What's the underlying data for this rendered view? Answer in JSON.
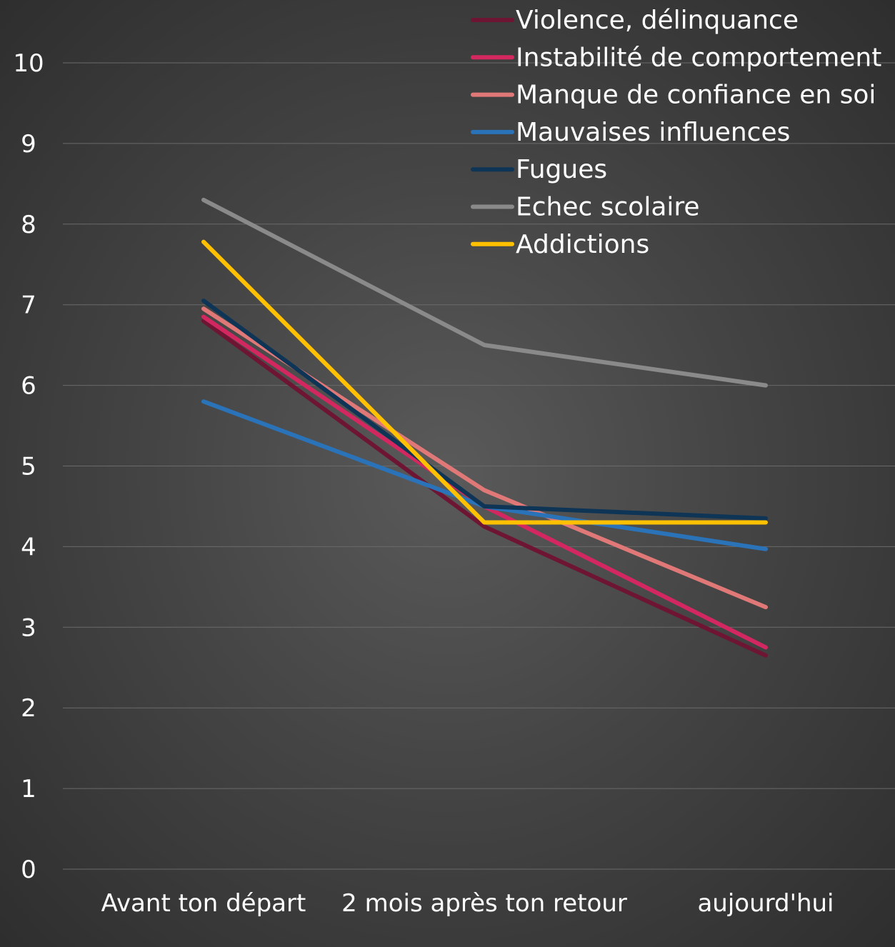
{
  "chart_data": {
    "type": "line",
    "title": "",
    "xlabel": "",
    "ylabel": "",
    "ylim": [
      0,
      10
    ],
    "yticks": [
      0,
      1,
      2,
      3,
      4,
      5,
      6,
      7,
      8,
      9,
      10
    ],
    "grid": true,
    "legend_position": "top-right",
    "categories": [
      "Avant ton départ",
      "2 mois après ton retour",
      "aujourd'hui"
    ],
    "series": [
      {
        "name": "Violence, délinquance",
        "color": "#6e1534",
        "values": [
          6.8,
          4.25,
          2.65
        ]
      },
      {
        "name": "Instabilité de comportement",
        "color": "#d2285f",
        "values": [
          6.85,
          4.5,
          2.75
        ]
      },
      {
        "name": "Manque de confiance en soi",
        "color": "#e07878",
        "values": [
          6.95,
          4.7,
          3.25
        ]
      },
      {
        "name": "Mauvaises influences",
        "color": "#2a73b8",
        "values": [
          5.8,
          4.5,
          3.97
        ]
      },
      {
        "name": "Fugues",
        "color": "#0f3556",
        "values": [
          7.05,
          4.5,
          4.35
        ]
      },
      {
        "name": "Echec scolaire",
        "color": "#8a8a8a",
        "values": [
          8.3,
          6.5,
          6.0
        ]
      },
      {
        "name": "Addictions",
        "color": "#ffc000",
        "values": [
          7.78,
          4.3,
          4.3
        ]
      }
    ]
  }
}
